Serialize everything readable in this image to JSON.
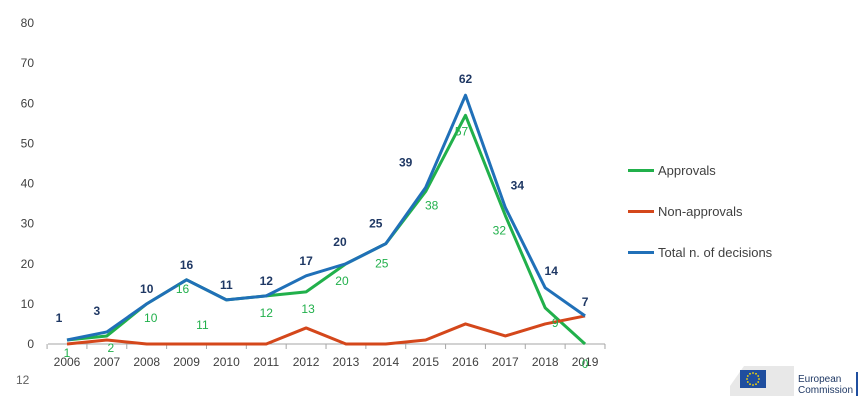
{
  "page_number": "12",
  "logo": {
    "text_line1": "European",
    "text_line2": "Commission",
    "icon": "eu-flag-icon"
  },
  "chart_data": {
    "type": "line",
    "title": "",
    "xlabel": "",
    "ylabel": "",
    "ylim": [
      0,
      80
    ],
    "yticks": [
      "0",
      "10",
      "20",
      "30",
      "40",
      "50",
      "60",
      "70",
      "80"
    ],
    "grid": false,
    "legend_position": "right",
    "x": [
      "2006",
      "2007",
      "2008",
      "2009",
      "2010",
      "2011",
      "2012",
      "2013",
      "2014",
      "2015",
      "2016",
      "2017",
      "2018",
      "2019"
    ],
    "series": [
      {
        "name": "Approvals",
        "color": "#21b04b",
        "labeled": true,
        "values": [
          1,
          2,
          10,
          16,
          11,
          12,
          13,
          20,
          25,
          38,
          57,
          32,
          9,
          0
        ]
      },
      {
        "name": "Non-approvals",
        "color": "#d4471b",
        "labeled": false,
        "values": [
          0,
          1,
          0,
          0,
          0,
          0,
          4,
          0,
          0,
          1,
          5,
          2,
          5,
          7
        ]
      },
      {
        "name": "Total n. of decisions",
        "color": "#2070b8",
        "labeled": true,
        "values": [
          1,
          3,
          10,
          16,
          11,
          12,
          17,
          20,
          25,
          39,
          62,
          34,
          14,
          7
        ]
      }
    ],
    "data_labels": {
      "Approvals": [
        "1",
        "2",
        "10",
        "16",
        "11",
        "12",
        "13",
        "20",
        "25",
        "38",
        "57",
        "32",
        "9",
        "0"
      ],
      "Total n. of decisions": [
        "1",
        "3",
        "10",
        "16",
        "11",
        "12",
        "17",
        "20",
        "25",
        "39",
        "62",
        "34",
        "14",
        "7"
      ]
    },
    "label_colors": {
      "Approvals": "#21b04b",
      "Total n. of decisions": "#1f3864"
    }
  }
}
